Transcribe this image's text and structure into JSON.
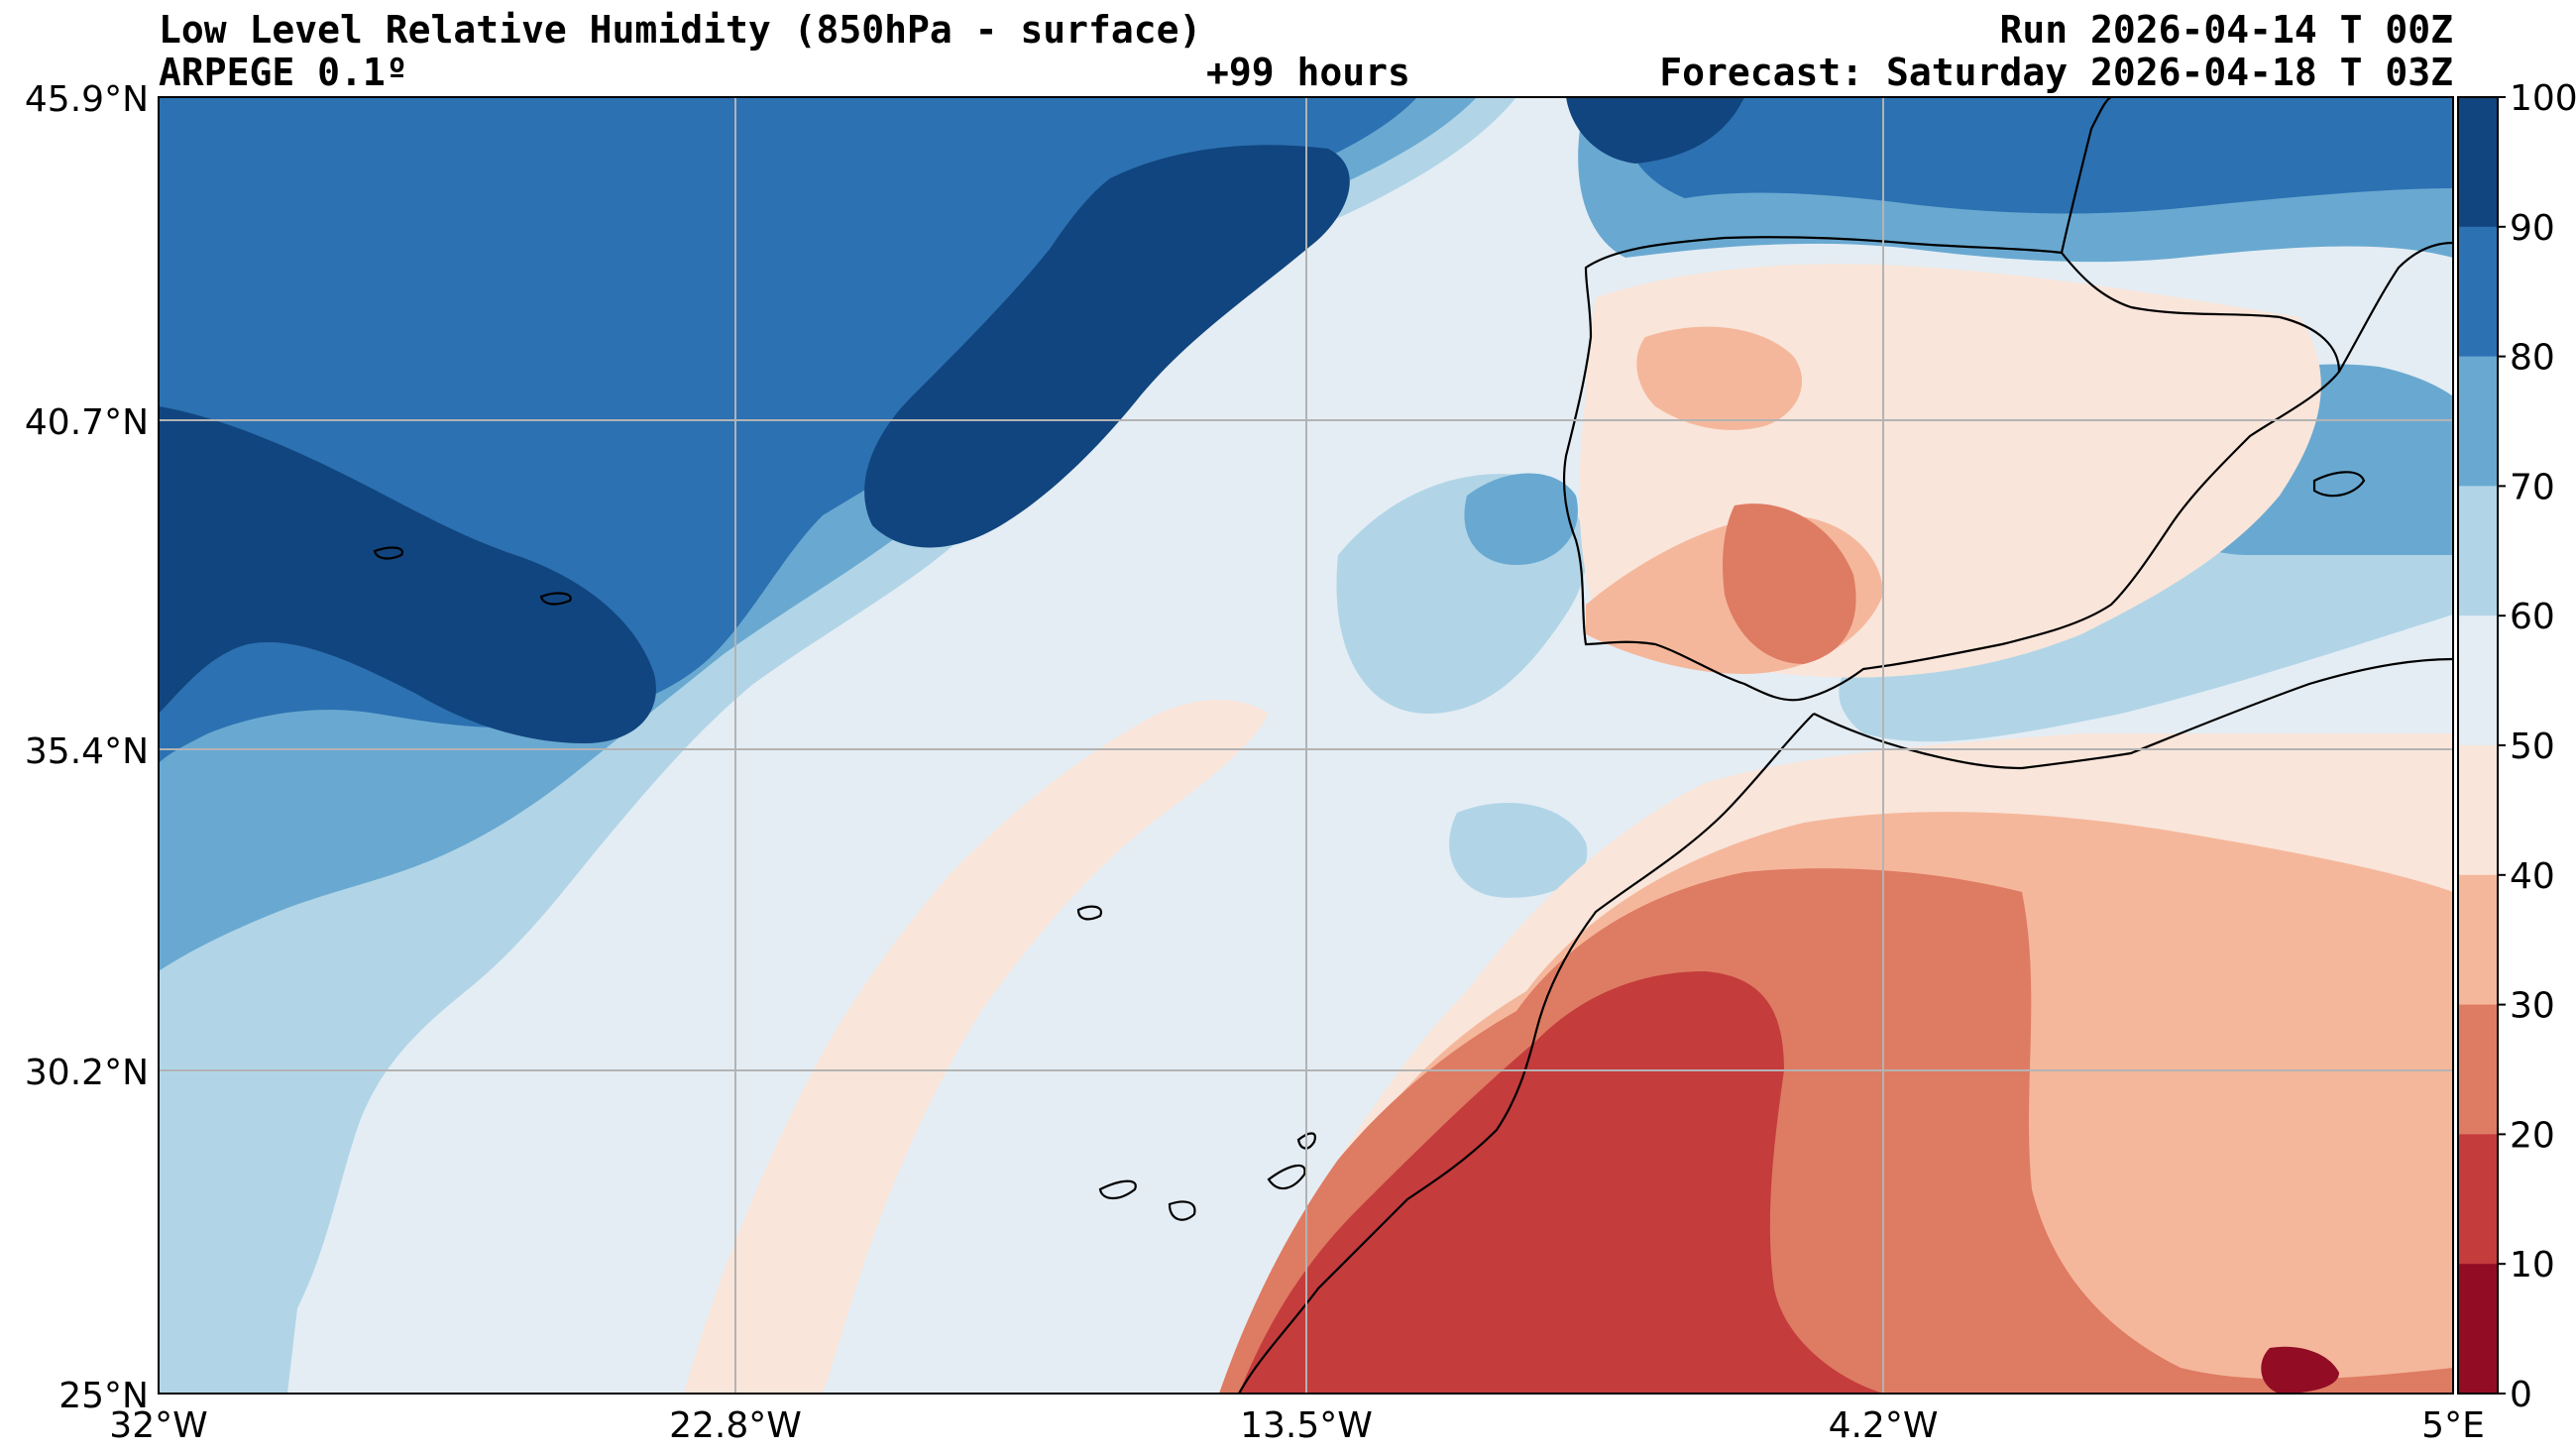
{
  "header": {
    "title": "Low Level Relative Humidity (850hPa - surface)",
    "model": "ARPEGE 0.1º",
    "lead": "+99 hours",
    "run": "Run 2026-04-14 T 00Z",
    "forecast": "Forecast: Saturday 2026-04-18 T 03Z"
  },
  "axes": {
    "x_ticks": [
      "32°W",
      "22.8°W",
      "13.5°W",
      "4.2°W",
      "5°E"
    ],
    "y_ticks": [
      "45.9°N",
      "40.7°N",
      "35.4°N",
      "30.2°N",
      "25°N"
    ]
  },
  "colorbar": {
    "ticks": [
      "100",
      "90",
      "80",
      "70",
      "60",
      "50",
      "40",
      "30",
      "20",
      "10",
      "0"
    ],
    "colors": [
      "#11457f",
      "#2c71b1",
      "#69a9d1",
      "#b1d5e7",
      "#e4edf4",
      "#f9e5da",
      "#f5b79b",
      "#de7b63",
      "#c43c3c",
      "#920d24"
    ]
  },
  "map": {
    "region": "Eastern North Atlantic, Iberian Peninsula and Northwest Africa",
    "grid": true,
    "palette": {
      "h90_100": "#11457f",
      "h80_90": "#2c71b1",
      "h70_80": "#69a9d1",
      "h60_70": "#b1d5e7",
      "h50_60": "#e4edf4",
      "h40_50": "#f9e5da",
      "h30_40": "#f5b79b",
      "h20_30": "#de7b63",
      "h10_20": "#c43c3c",
      "h0_10": "#920d24"
    }
  }
}
